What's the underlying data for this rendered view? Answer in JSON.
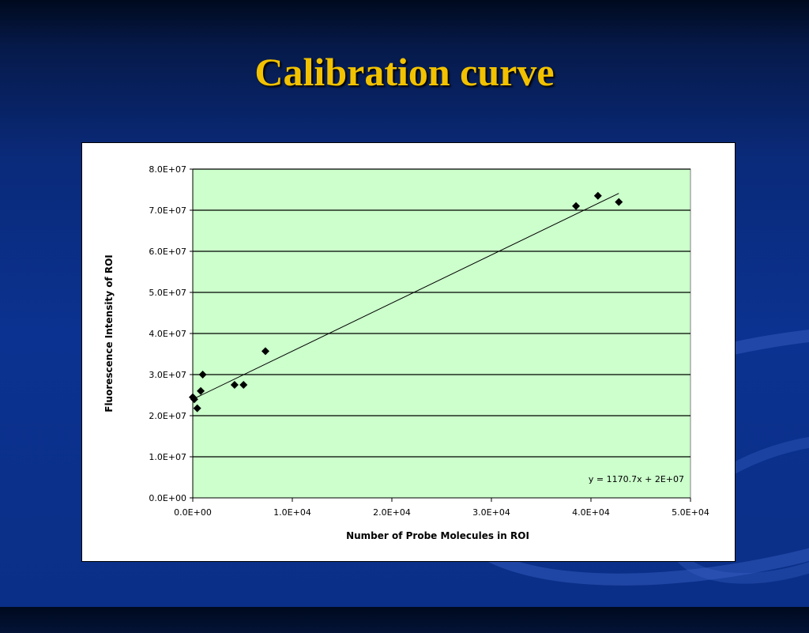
{
  "slide": {
    "title": "Calibration curve"
  },
  "chart_data": {
    "type": "scatter",
    "title": "",
    "xlabel": "Number of Probe Molecules in ROI",
    "ylabel": "Fluorescence Intensity of ROI",
    "xlim": [
      0,
      50000
    ],
    "ylim": [
      0,
      80000000
    ],
    "x_ticks": [
      "0.0E+00",
      "1.0E+04",
      "2.0E+04",
      "3.0E+04",
      "4.0E+04",
      "5.0E+04"
    ],
    "y_ticks": [
      "0.0E+00",
      "1.0E+07",
      "2.0E+07",
      "3.0E+07",
      "4.0E+07",
      "5.0E+07",
      "6.0E+07",
      "7.0E+07",
      "8.0E+07"
    ],
    "grid": "horizontal",
    "plot_background": "#ccffcc",
    "marker_color": "#000000",
    "points": [
      {
        "x": 0,
        "y": 24500000
      },
      {
        "x": 150,
        "y": 24000000
      },
      {
        "x": 450,
        "y": 21800000
      },
      {
        "x": 800,
        "y": 26000000
      },
      {
        "x": 1000,
        "y": 30000000
      },
      {
        "x": 4200,
        "y": 27500000
      },
      {
        "x": 5100,
        "y": 27500000
      },
      {
        "x": 7300,
        "y": 35700000
      },
      {
        "x": 38500,
        "y": 71000000
      },
      {
        "x": 40700,
        "y": 73500000
      },
      {
        "x": 42800,
        "y": 72000000
      }
    ],
    "trendline": {
      "slope": 1170.7,
      "intercept": 24000000,
      "x_range": [
        0,
        42800
      ],
      "equation_label": "y = 1170.7x + 2E+07"
    }
  }
}
